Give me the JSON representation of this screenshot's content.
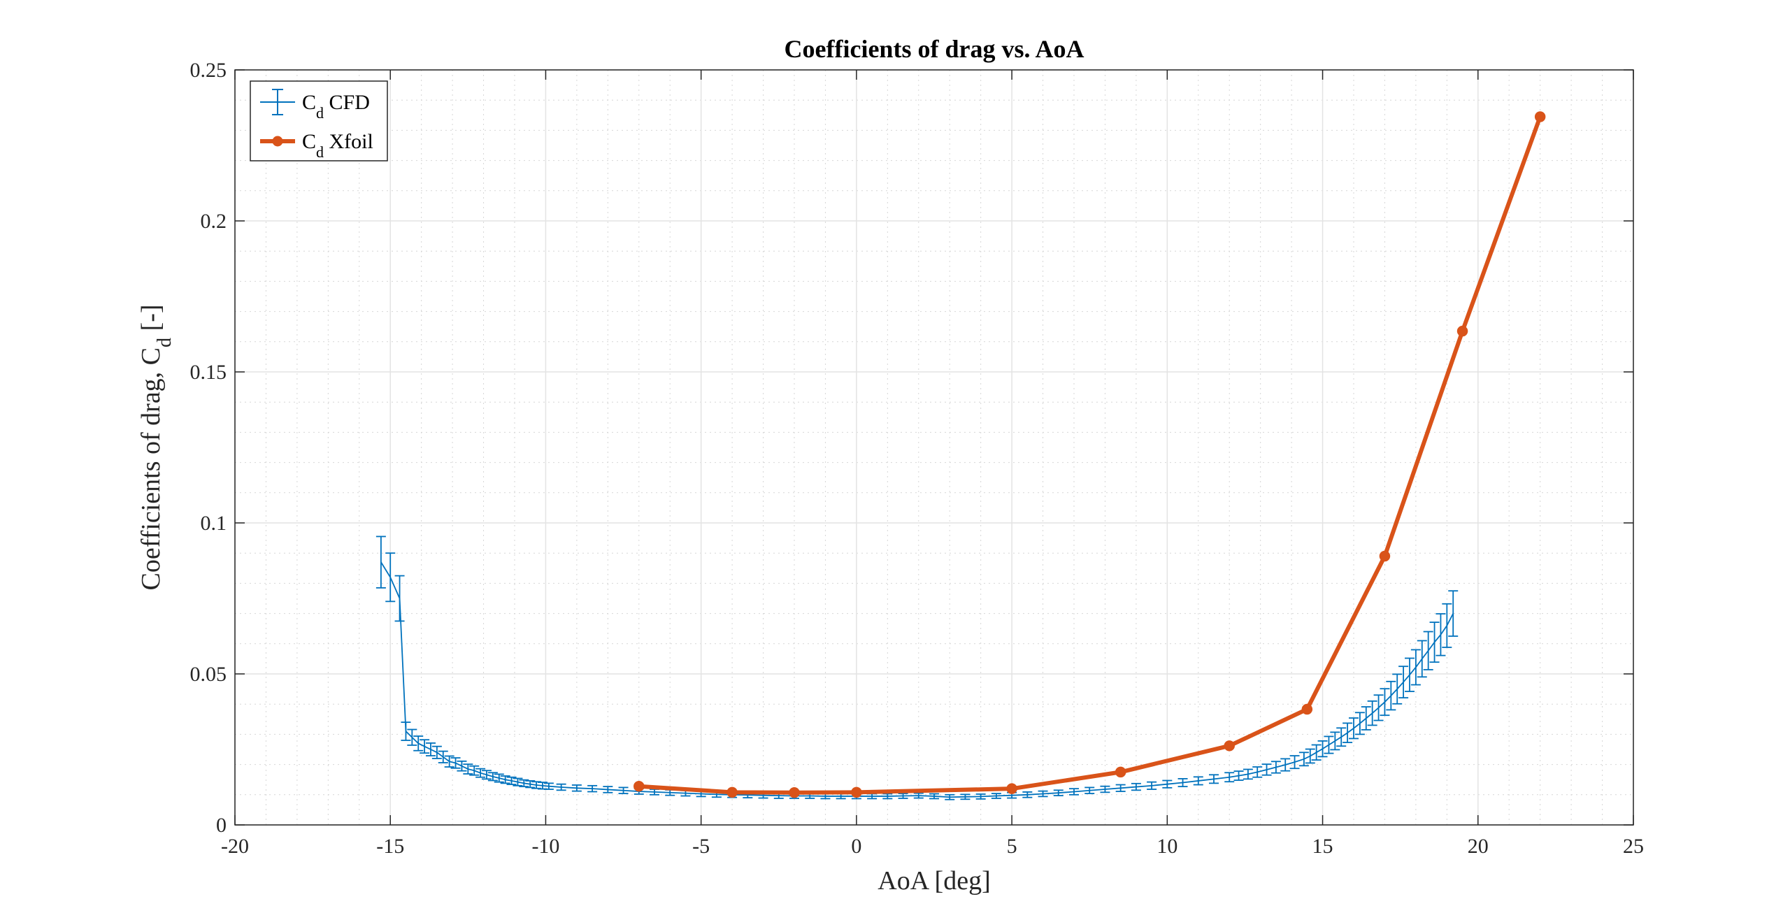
{
  "chart_data": {
    "type": "line",
    "title": "Coefficients of drag vs. AoA",
    "xlabel": "AoA [deg]",
    "ylabel_main": "Coefficients of drag, C",
    "ylabel_sub": "d",
    "ylabel_suffix": " [-]",
    "xlim": [
      -20,
      25
    ],
    "ylim": [
      0,
      0.25
    ],
    "xticks": [
      -20,
      -15,
      -10,
      -5,
      0,
      5,
      10,
      15,
      20,
      25
    ],
    "yticks": [
      0,
      0.05,
      0.1,
      0.15,
      0.2,
      0.25
    ],
    "grid": true,
    "minor_grid": true,
    "legend_location": "top-left",
    "series": [
      {
        "name": "Cd CFD",
        "legend_main": "C",
        "legend_sub": "d",
        "legend_suffix": " CFD",
        "color": "#0072BD",
        "style": "errorbar",
        "x": [
          -15.3,
          -15.0,
          -14.7,
          -14.5,
          -14.3,
          -14.1,
          -13.9,
          -13.7,
          -13.5,
          -13.3,
          -13.1,
          -12.9,
          -12.7,
          -12.5,
          -12.3,
          -12.1,
          -11.9,
          -11.7,
          -11.5,
          -11.3,
          -11.1,
          -10.9,
          -10.7,
          -10.5,
          -10.3,
          -10.1,
          -9.9,
          -9.5,
          -9.0,
          -8.5,
          -8.0,
          -7.5,
          -7.0,
          -6.5,
          -6.0,
          -5.5,
          -5.0,
          -4.5,
          -4.0,
          -3.5,
          -3.0,
          -2.5,
          -2.0,
          -1.5,
          -1.0,
          -0.5,
          0.0,
          0.5,
          1.0,
          1.5,
          2.0,
          2.5,
          3.0,
          3.5,
          4.0,
          4.5,
          5.0,
          5.5,
          6.0,
          6.5,
          7.0,
          7.5,
          8.0,
          8.5,
          9.0,
          9.5,
          10.0,
          10.5,
          11.0,
          11.5,
          12.0,
          12.3,
          12.6,
          12.9,
          13.2,
          13.5,
          13.8,
          14.1,
          14.4,
          14.6,
          14.8,
          15.0,
          15.2,
          15.4,
          15.6,
          15.8,
          16.0,
          16.2,
          16.4,
          16.6,
          16.8,
          17.0,
          17.2,
          17.4,
          17.6,
          17.8,
          18.0,
          18.2,
          18.4,
          18.6,
          18.8,
          19.0,
          19.2
        ],
        "y": [
          0.087,
          0.082,
          0.075,
          0.031,
          0.029,
          0.027,
          0.026,
          0.025,
          0.024,
          0.0225,
          0.021,
          0.0205,
          0.0195,
          0.0185,
          0.018,
          0.0172,
          0.0166,
          0.016,
          0.0155,
          0.015,
          0.0146,
          0.0142,
          0.0138,
          0.0135,
          0.0132,
          0.013,
          0.0128,
          0.0125,
          0.0122,
          0.012,
          0.0117,
          0.0114,
          0.0111,
          0.0109,
          0.0107,
          0.0105,
          0.0103,
          0.0101,
          0.01,
          0.0099,
          0.0098,
          0.0097,
          0.0096,
          0.0096,
          0.0095,
          0.0095,
          0.0095,
          0.0095,
          0.0095,
          0.0096,
          0.0097,
          0.0095,
          0.0092,
          0.0093,
          0.0094,
          0.0096,
          0.0098,
          0.01,
          0.0103,
          0.0106,
          0.011,
          0.0114,
          0.0118,
          0.0122,
          0.0126,
          0.013,
          0.0135,
          0.014,
          0.0146,
          0.0152,
          0.0158,
          0.0163,
          0.0168,
          0.0175,
          0.0183,
          0.0191,
          0.0199,
          0.0208,
          0.0218,
          0.0228,
          0.024,
          0.0252,
          0.0265,
          0.0278,
          0.0291,
          0.0305,
          0.032,
          0.0336,
          0.0353,
          0.037,
          0.0388,
          0.0407,
          0.0428,
          0.045,
          0.0473,
          0.0497,
          0.0522,
          0.055,
          0.0577,
          0.0605,
          0.063,
          0.066,
          0.07
        ],
        "err": [
          0.0085,
          0.008,
          0.0075,
          0.003,
          0.0026,
          0.0024,
          0.0022,
          0.0021,
          0.002,
          0.0019,
          0.0018,
          0.0017,
          0.0016,
          0.0016,
          0.0015,
          0.0014,
          0.0014,
          0.0013,
          0.0013,
          0.0012,
          0.0012,
          0.0012,
          0.0011,
          0.0011,
          0.0011,
          0.0011,
          0.001,
          0.001,
          0.001,
          0.001,
          0.001,
          0.001,
          0.0009,
          0.0009,
          0.0009,
          0.0009,
          0.0009,
          0.0009,
          0.0009,
          0.0009,
          0.0009,
          0.0009,
          0.0008,
          0.0008,
          0.0008,
          0.0008,
          0.0008,
          0.0008,
          0.0008,
          0.0008,
          0.0008,
          0.0008,
          0.0008,
          0.0008,
          0.0008,
          0.0008,
          0.0009,
          0.0009,
          0.0009,
          0.0009,
          0.001,
          0.001,
          0.001,
          0.0011,
          0.0011,
          0.0012,
          0.0012,
          0.0013,
          0.0013,
          0.0014,
          0.0015,
          0.0015,
          0.0016,
          0.0017,
          0.0018,
          0.0019,
          0.002,
          0.0021,
          0.0022,
          0.0023,
          0.0025,
          0.0026,
          0.0028,
          0.0029,
          0.003,
          0.0032,
          0.0034,
          0.0036,
          0.0038,
          0.004,
          0.0042,
          0.0044,
          0.0047,
          0.0049,
          0.0052,
          0.0055,
          0.0058,
          0.006,
          0.0063,
          0.0066,
          0.0069,
          0.0072,
          0.0075
        ]
      },
      {
        "name": "Cd Xfoil",
        "legend_main": "C",
        "legend_sub": "d",
        "legend_suffix": " Xfoil",
        "color": "#D95319",
        "style": "line-marker",
        "x": [
          -7,
          -4,
          -2,
          0,
          5,
          8.5,
          12,
          14.5,
          17,
          19.5,
          22
        ],
        "y": [
          0.0128,
          0.0108,
          0.0107,
          0.0108,
          0.012,
          0.0175,
          0.0262,
          0.0383,
          0.089,
          0.1635,
          0.2345
        ]
      }
    ]
  }
}
